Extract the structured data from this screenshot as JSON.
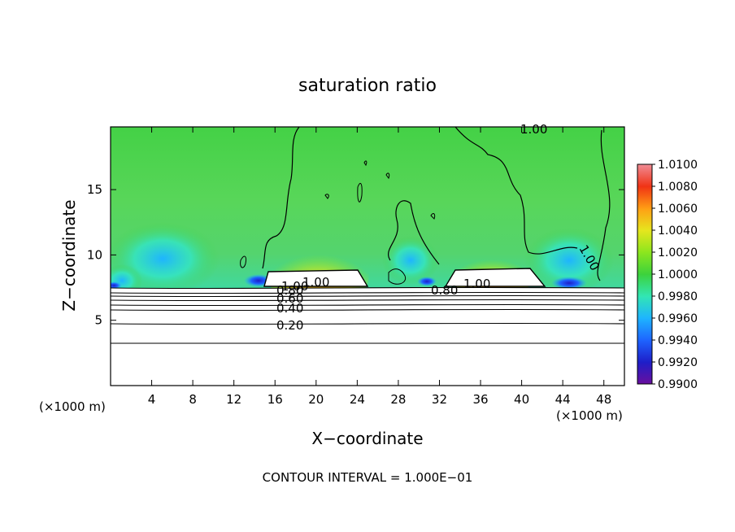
{
  "chart_data": {
    "type": "heatmap",
    "title": "saturation ratio",
    "xlabel": "X−coordinate",
    "ylabel": "Z−coordinate",
    "x_unit_left": "(×1000 m)",
    "x_unit_right": "(×1000 m)",
    "footer": "CONTOUR INTERVAL = 1.000E−01",
    "xlim": [
      0,
      50
    ],
    "ylim": [
      0,
      19.8
    ],
    "x_ticks": [
      4,
      8,
      12,
      16,
      20,
      24,
      28,
      32,
      36,
      40,
      44,
      48
    ],
    "y_ticks": [
      5,
      10,
      15
    ],
    "colorbar": {
      "levels": [
        "0.9900",
        "0.9920",
        "0.9940",
        "0.9960",
        "0.9980",
        "1.0000",
        "1.0020",
        "1.0040",
        "1.0060",
        "1.0080",
        "1.0100"
      ],
      "colors": [
        "#6a0f9e",
        "#1e1ec8",
        "#1e64ff",
        "#1eb4ff",
        "#32e6b4",
        "#3cd23c",
        "#8ce61e",
        "#e6e61e",
        "#ff9e14",
        "#f03214",
        "#f08c96"
      ]
    },
    "contour_labels": [
      "0.20",
      "0.40",
      "0.60",
      "0.80",
      "0.80",
      "1.00",
      "1.00",
      "1.00",
      "1.00",
      "1.00"
    ],
    "grid": false,
    "legend": "right (colorbar)"
  }
}
